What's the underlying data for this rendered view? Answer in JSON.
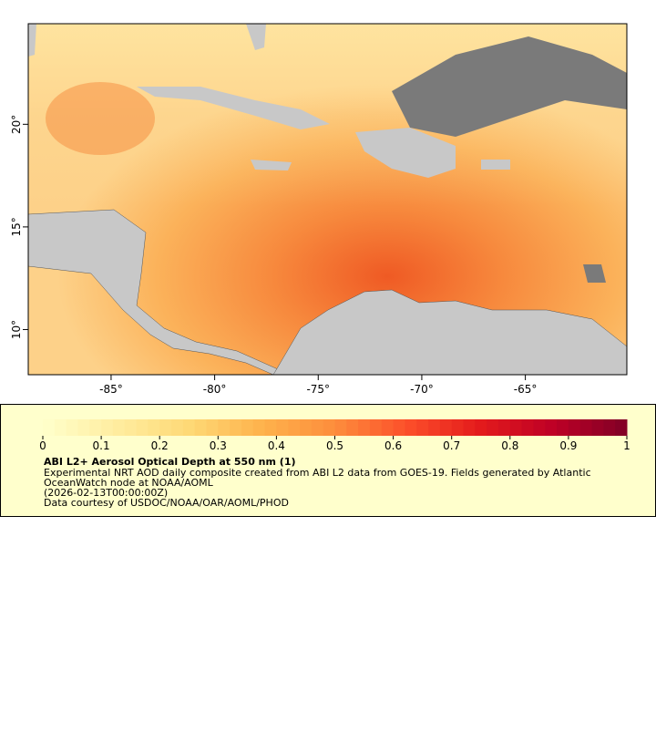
{
  "map": {
    "xlim": [
      -89.0,
      -60.1
    ],
    "ylim": [
      7.8,
      24.9
    ],
    "xticks": [
      {
        "value": -85,
        "label": "-85°"
      },
      {
        "value": -80,
        "label": "-80°"
      },
      {
        "value": -75,
        "label": "-75°"
      },
      {
        "value": -70,
        "label": "-70°"
      },
      {
        "value": -65,
        "label": "-65°"
      }
    ],
    "yticks": [
      {
        "value": 10,
        "label": "10°"
      },
      {
        "value": 15,
        "label": "15°"
      },
      {
        "value": 20,
        "label": "20°"
      }
    ]
  },
  "colorbar": {
    "lim": [
      0,
      1
    ],
    "ticks": [
      0,
      0.1,
      0.2,
      0.3,
      0.4,
      0.5,
      0.6,
      0.7,
      0.8,
      0.9,
      1
    ],
    "colormap": [
      "#ffffcc",
      "#ffeda0",
      "#fed976",
      "#feb24c",
      "#fd8d3c",
      "#fc4e2a",
      "#e31a1c",
      "#bd0026",
      "#800026"
    ]
  },
  "legend": {
    "title": "ABI L2+ Aerosol Optical Depth at 550 nm (1)",
    "lines": [
      "Experimental NRT AOD daily composite created from ABI L2 data from GOES-19. Fields generated by Atlantic",
      "OceanWatch node at NOAA/AOML",
      "(2026-02-13T00:00:00Z)",
      "Data courtesy of USDOC/NOAA/OAR/AOML/PHOD"
    ]
  }
}
